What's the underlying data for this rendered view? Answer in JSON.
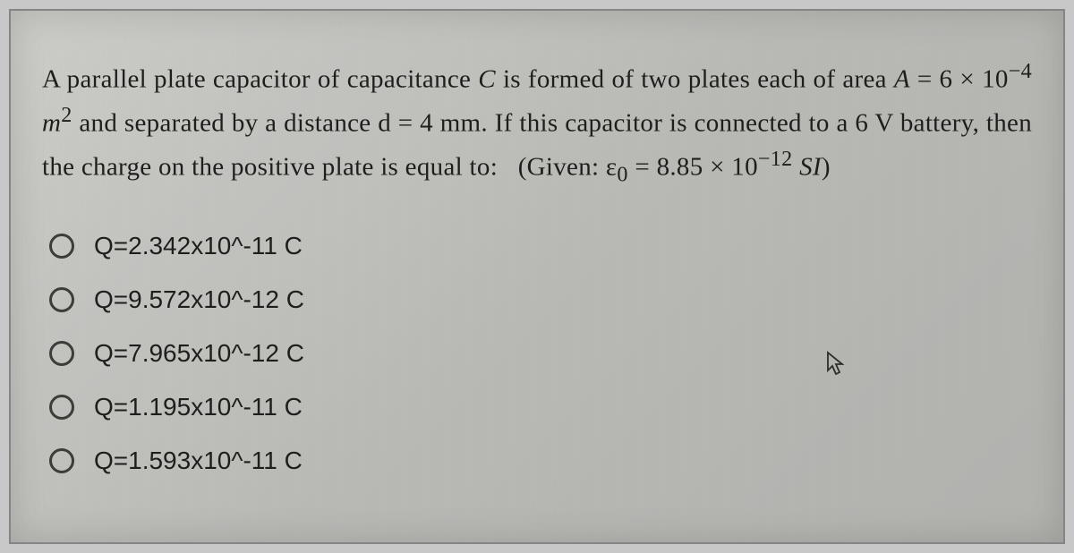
{
  "question": {
    "text_html": "A parallel plate capacitor of capacitance <i>C</i> is formed of two plates each of area <i>A</i> = 6 × 10<sup>−4</sup> <i>m</i><sup>2</sup> and separated by a distance d = 4 mm. If this capacitor is connected to a 6 V battery, then the charge on the positive plate is equal to: &nbsp;&nbsp;(Given: ε<sub>0</sub> = 8.85 × 10<sup>−12</sup> <i>SI</i>)"
  },
  "options": [
    {
      "label": "Q=2.342x10^-11 C"
    },
    {
      "label": "Q=9.572x10^-12 C"
    },
    {
      "label": "Q=7.965x10^-12 C"
    },
    {
      "label": "Q=1.195x10^-11 C"
    },
    {
      "label": "Q=1.593x10^-11 C"
    }
  ],
  "colors": {
    "text": "#1a1a18",
    "radio_border": "#3a3a36",
    "paper_bg": "#c8c8c4",
    "body_bg": "#c8c8c8"
  },
  "cursor": {
    "visible": true
  }
}
